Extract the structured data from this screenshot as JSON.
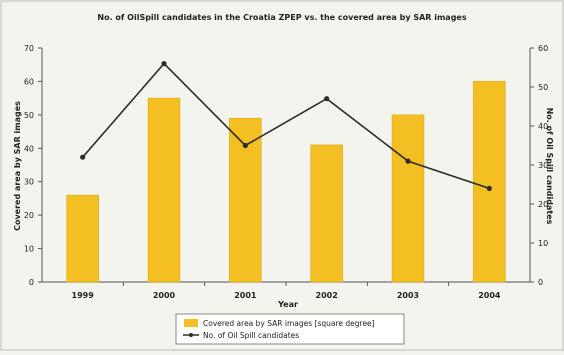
{
  "chart_data": {
    "type": "bar",
    "title": "No. of OilSpill candidates in the Croatia ZPEP vs. the covered area by SAR images",
    "xlabel": "Year",
    "ylabel": "Covered area by SAR images",
    "ylabel_right": "No. of Oil Spill candidates",
    "categories": [
      "1999",
      "2000",
      "2001",
      "2002",
      "2003",
      "2004"
    ],
    "ylim": [
      0,
      70
    ],
    "ylim_right": [
      0,
      60
    ],
    "yticks": [
      "0",
      "10",
      "20",
      "30",
      "40",
      "50",
      "60",
      "70"
    ],
    "yticks_right": [
      "0",
      "10",
      "20",
      "30",
      "40",
      "50",
      "60"
    ],
    "grid": false,
    "legend_position": "bottom-center",
    "series": [
      {
        "name": "Covered area by SAR images [square degree]",
        "type": "bar",
        "axis": "left",
        "color": "#f3bf22",
        "values": [
          26,
          55,
          49,
          41,
          50,
          60
        ]
      },
      {
        "name": "No. of Oil Spill candidates",
        "type": "line",
        "axis": "right",
        "color": "#2c2c2c",
        "values": [
          32,
          56,
          35,
          47,
          31,
          24
        ]
      }
    ]
  }
}
